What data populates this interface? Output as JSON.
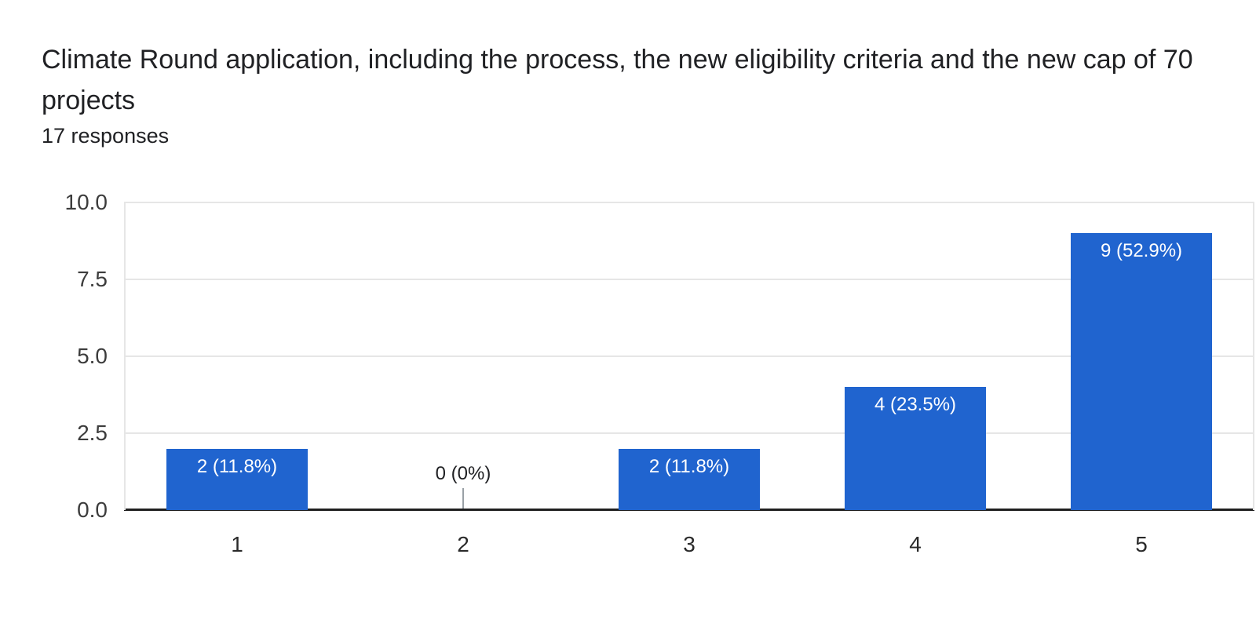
{
  "question": {
    "title": "Climate Round application, including the process, the new eligibility criteria and the new cap of 70 projects",
    "responses_label": "17 responses"
  },
  "chart_data": {
    "type": "bar",
    "title": "Climate Round application, including the process, the new eligibility criteria and the new cap of 70 projects",
    "subtitle": "17 responses",
    "categories": [
      "1",
      "2",
      "3",
      "4",
      "5"
    ],
    "values": [
      2,
      0,
      2,
      4,
      9
    ],
    "value_labels": [
      "2 (11.8%)",
      "0 (0%)",
      "2 (11.8%)",
      "4 (23.5%)",
      "9 (52.9%)"
    ],
    "xlabel": "",
    "ylabel": "",
    "ylim": [
      0,
      10
    ],
    "yticks": [
      0,
      2.5,
      5,
      7.5,
      10
    ],
    "ytick_labels": [
      "0.0",
      "2.5",
      "5.0",
      "7.5",
      "10.0"
    ],
    "grid": true,
    "legend": "none",
    "colors": {
      "bar": "#2064cf",
      "gridline": "#e6e6e6",
      "axis_line": "#1f1f1f",
      "y_tick_text": "#3c3c3c",
      "x_tick_text": "#2a2a2a",
      "annotation_inside": "#ffffff",
      "annotation_outside": "#202124",
      "annotation_stem": "#9aa0a6"
    }
  }
}
